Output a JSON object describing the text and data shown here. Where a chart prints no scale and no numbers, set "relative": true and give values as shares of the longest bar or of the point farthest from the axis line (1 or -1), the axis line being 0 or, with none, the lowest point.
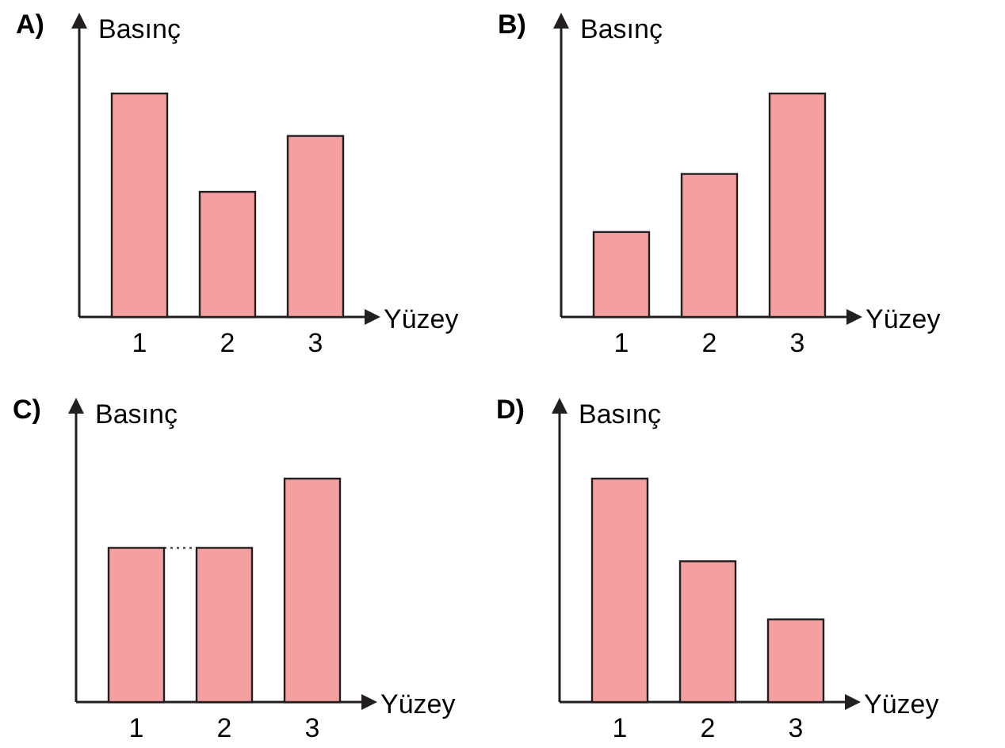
{
  "chart_data": [
    {
      "type": "bar",
      "title": "A)",
      "ylabel": "Basınç",
      "xlabel": "Yüzey",
      "categories": [
        "1",
        "2",
        "3"
      ],
      "values": [
        1,
        0.56,
        0.81
      ],
      "color": "#f4a0a0",
      "relative": true
    },
    {
      "type": "bar",
      "title": "B)",
      "ylabel": "Basınç",
      "xlabel": "Yüzey",
      "categories": [
        "1",
        "2",
        "3"
      ],
      "values": [
        0.38,
        0.64,
        1
      ],
      "color": "#f4a0a0",
      "relative": true
    },
    {
      "type": "bar",
      "title": "C)",
      "ylabel": "Basınç",
      "xlabel": "Yüzey",
      "categories": [
        "1",
        "2",
        "3"
      ],
      "values": [
        0.69,
        0.69,
        1
      ],
      "color": "#f4a0a0",
      "relative": true
    },
    {
      "type": "bar",
      "title": "D)",
      "ylabel": "Basınç",
      "xlabel": "Yüzey",
      "categories": [
        "1",
        "2",
        "3"
      ],
      "values": [
        1,
        0.63,
        0.37
      ],
      "color": "#f4a0a0",
      "relative": true
    }
  ]
}
